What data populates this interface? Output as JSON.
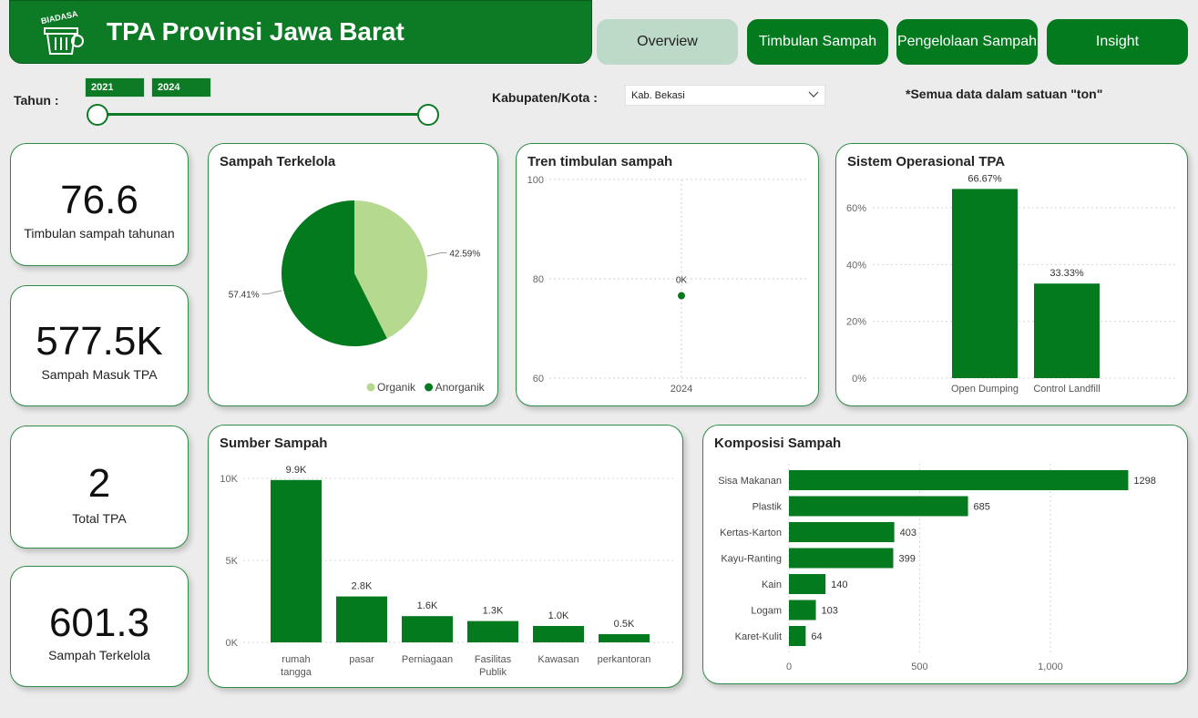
{
  "header": {
    "title": "TPA Provinsi Jawa Barat",
    "logo_text": "BIADASA"
  },
  "nav": [
    {
      "label": "Overview",
      "active": true
    },
    {
      "label": "Timbulan Sampah",
      "active": false
    },
    {
      "label": "Pengelolaan Sampah",
      "active": false
    },
    {
      "label": "Insight",
      "active": false
    }
  ],
  "filters": {
    "year_label": "Tahun :",
    "year_from": "2021",
    "year_to": "2024",
    "city_label": "Kabupaten/Kota :",
    "city_value": "Kab. Bekasi"
  },
  "note": "*Semua data dalam satuan \"ton\"",
  "kpis": [
    {
      "value": "76.6",
      "label": "Timbulan sampah tahunan"
    },
    {
      "value": "577.5K",
      "label": "Sampah Masuk TPA"
    },
    {
      "value": "2",
      "label": "Total TPA"
    },
    {
      "value": "601.3",
      "label": "Sampah Terkelola"
    }
  ],
  "colors": {
    "primary": "#047a1e",
    "light_green": "#b5d98f",
    "header": "#0d7a25"
  },
  "chart_data": [
    {
      "id": "sampah-terkelola",
      "type": "pie",
      "title": "Sampah Terkelola",
      "slices": [
        {
          "name": "Organik",
          "value": 42.59,
          "label": "42.59%",
          "color": "#b5d98f"
        },
        {
          "name": "Anorganik",
          "value": 57.41,
          "label": "57.41%",
          "color": "#047a1e"
        }
      ],
      "legend": [
        "Organik",
        "Anorganik"
      ]
    },
    {
      "id": "tren-timbulan",
      "type": "scatter",
      "title": "Tren timbulan sampah",
      "x": [
        "2024"
      ],
      "y": [
        76.6
      ],
      "data_labels": [
        "0K"
      ],
      "ylim": [
        60,
        100
      ],
      "yticks": [
        "60",
        "80",
        "100"
      ]
    },
    {
      "id": "sistem-operasional",
      "type": "bar",
      "title": "Sistem Operasional TPA",
      "categories": [
        "Open Dumping",
        "Control Landfill"
      ],
      "values": [
        66.67,
        33.33
      ],
      "data_labels": [
        "66.67%",
        "33.33%"
      ],
      "ylim": [
        0,
        70
      ],
      "yticks": [
        "0%",
        "20%",
        "40%",
        "60%"
      ]
    },
    {
      "id": "sumber-sampah",
      "type": "bar",
      "title": "Sumber Sampah",
      "categories": [
        "rumah tangga",
        "pasar",
        "Perniagaan",
        "Fasilitas Publik",
        "Kawasan",
        "perkantoran"
      ],
      "values": [
        9900,
        2800,
        1600,
        1300,
        1000,
        500
      ],
      "data_labels": [
        "9.9K",
        "2.8K",
        "1.6K",
        "1.3K",
        "1.0K",
        "0.5K"
      ],
      "ylim": [
        0,
        10000
      ],
      "yticks": [
        "0K",
        "5K",
        "10K"
      ]
    },
    {
      "id": "komposisi-sampah",
      "type": "bar",
      "orientation": "horizontal",
      "title": "Komposisi Sampah",
      "categories": [
        "Sisa Makanan",
        "Plastik",
        "Kertas-Karton",
        "Kayu-Ranting",
        "Kain",
        "Logam",
        "Karet-Kulit"
      ],
      "values": [
        1298,
        685,
        403,
        399,
        140,
        103,
        64
      ],
      "data_labels": [
        "1298",
        "685",
        "403",
        "399",
        "140",
        "103",
        "64"
      ],
      "xlim": [
        0,
        1300
      ],
      "xticks": [
        "0",
        "500",
        "1,000"
      ]
    }
  ]
}
